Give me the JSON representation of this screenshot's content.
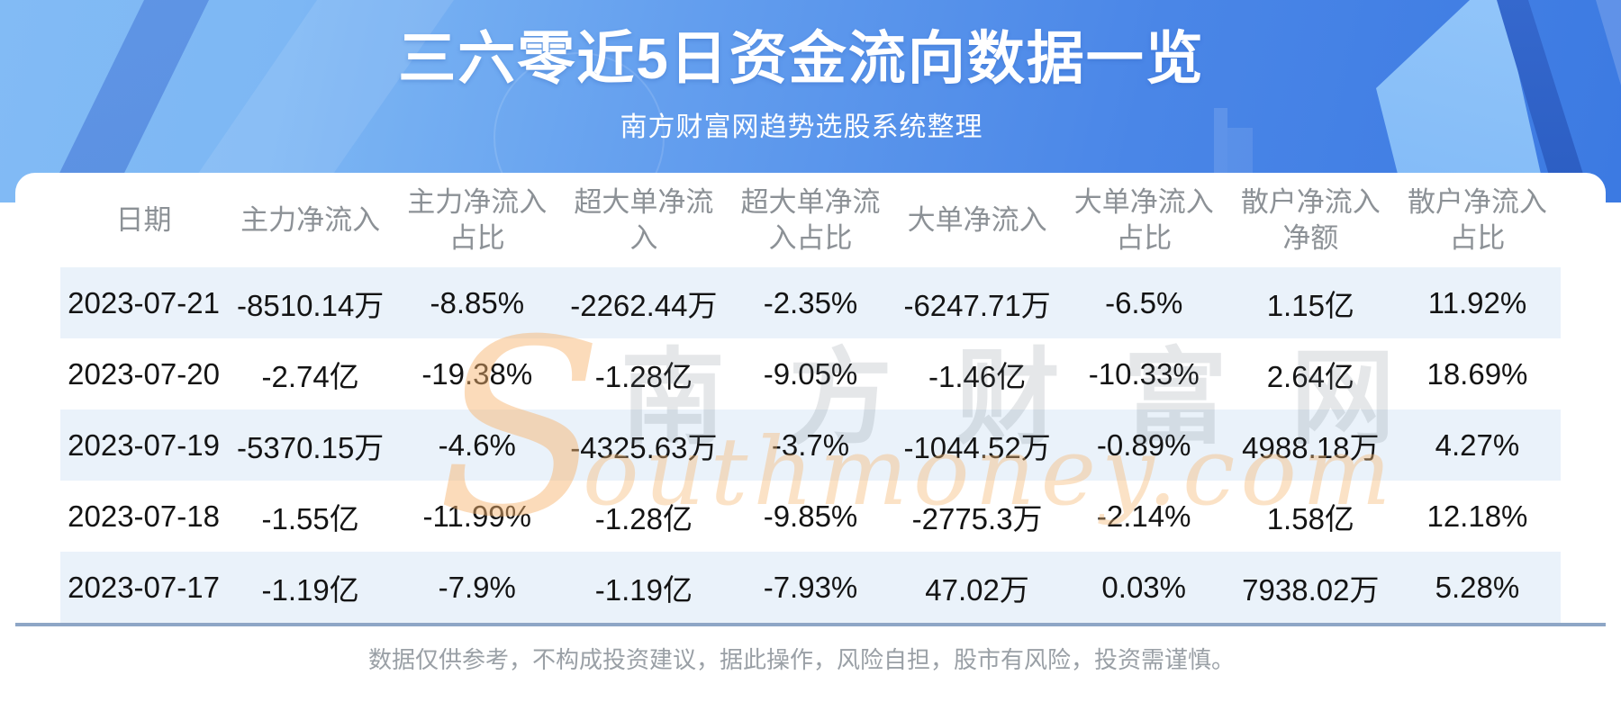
{
  "header": {
    "title": "三六零近5日资金流向数据一览",
    "subtitle": "南方财富网趋势选股系统整理"
  },
  "chart_data": {
    "type": "table",
    "title": "三六零近5日资金流向数据一览",
    "columns": [
      "日期",
      "主力净流入",
      "主力净流入占比",
      "超大单净流入",
      "超大单净流入占比",
      "大单净流入",
      "大单净流入占比",
      "散户净流入净额",
      "散户净流入占比"
    ],
    "rows": [
      [
        "2023-07-21",
        "-8510.14万",
        "-8.85%",
        "-2262.44万",
        "-2.35%",
        "-6247.71万",
        "-6.5%",
        "1.15亿",
        "11.92%"
      ],
      [
        "2023-07-20",
        "-2.74亿",
        "-19.38%",
        "-1.28亿",
        "-9.05%",
        "-1.46亿",
        "-10.33%",
        "2.64亿",
        "18.69%"
      ],
      [
        "2023-07-19",
        "-5370.15万",
        "-4.6%",
        "-4325.63万",
        "-3.7%",
        "-1044.52万",
        "-0.89%",
        "4988.18万",
        "4.27%"
      ],
      [
        "2023-07-18",
        "-1.55亿",
        "-11.99%",
        "-1.28亿",
        "-9.85%",
        "-2775.3万",
        "-2.14%",
        "1.58亿",
        "12.18%"
      ],
      [
        "2023-07-17",
        "-1.19亿",
        "-7.9%",
        "-1.19亿",
        "-7.93%",
        "47.02万",
        "0.03%",
        "7938.02万",
        "5.28%"
      ]
    ]
  },
  "watermark": {
    "initial": "S",
    "cn": "南方财富网",
    "en": "outhmoney.com"
  },
  "footer": {
    "disclaimer": "数据仅供参考，不构成投资建议，据此操作，风险自担，股市有风险，投资需谨慎。"
  },
  "colors": {
    "banner_blue_light": "#7db7f4",
    "banner_blue_deep": "#3c7ae2",
    "row_stripe": "#eaf2fa",
    "card_bottom_line": "#8ea6c6",
    "header_text": "#8c9196",
    "data_text": "#141414",
    "footer_text": "#9aa0a6",
    "watermark_orange": "#f6ba78"
  }
}
